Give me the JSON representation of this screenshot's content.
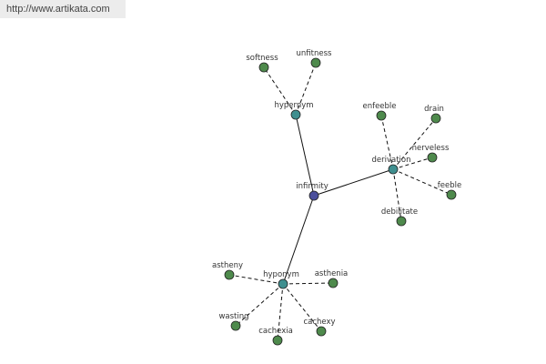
{
  "url": "http://www.artikata.com",
  "nodes": [
    {
      "label": "infirmity"
    },
    {
      "label": "hypernym"
    },
    {
      "label": "softness"
    },
    {
      "label": "unfitness"
    },
    {
      "label": "derivation"
    },
    {
      "label": "enfeeble"
    },
    {
      "label": "drain"
    },
    {
      "label": "nerveless"
    },
    {
      "label": "feeble"
    },
    {
      "label": "debilitate"
    },
    {
      "label": "hyponym"
    },
    {
      "label": "astheny"
    },
    {
      "label": "asthenia"
    },
    {
      "label": "wasting"
    },
    {
      "label": "cachexia"
    },
    {
      "label": "cachexy"
    }
  ]
}
